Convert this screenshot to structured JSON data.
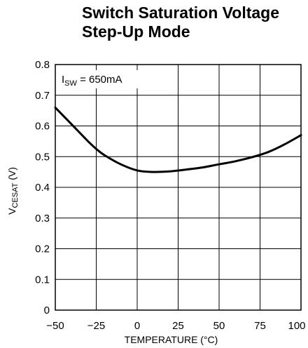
{
  "chart_data": {
    "type": "line",
    "title_line1": "Switch Saturation Voltage",
    "title_line2": "Step-Up Mode",
    "xlabel": "TEMPERATURE (°C)",
    "ylabel_main": "V",
    "ylabel_sub": "CESAT",
    "ylabel_unit": " (V)",
    "xlim": [
      -50,
      100
    ],
    "ylim": [
      0,
      0.8
    ],
    "x_ticks": [
      -50,
      -25,
      0,
      25,
      50,
      75,
      100
    ],
    "x_tick_labels": [
      "−50",
      "−25",
      "0",
      "25",
      "50",
      "75",
      "100"
    ],
    "y_ticks": [
      0,
      0.1,
      0.2,
      0.3,
      0.4,
      0.5,
      0.6,
      0.7,
      0.8
    ],
    "y_tick_labels": [
      "0",
      "0.1",
      "0.2",
      "0.3",
      "0.4",
      "0.5",
      "0.6",
      "0.7",
      "0.8"
    ],
    "grid": true,
    "annotation": {
      "main": "I",
      "sub": "SW",
      "rest": " = 650mA"
    },
    "line_color": "#000000",
    "series": [
      {
        "x": [
          -50,
          -40,
          -30,
          -25,
          -20,
          -10,
          0,
          10,
          20,
          30,
          40,
          50,
          60,
          70,
          80,
          90,
          100
        ],
        "values": [
          0.66,
          0.605,
          0.55,
          0.525,
          0.505,
          0.475,
          0.455,
          0.45,
          0.452,
          0.458,
          0.465,
          0.475,
          0.485,
          0.498,
          0.515,
          0.54,
          0.57
        ]
      }
    ]
  }
}
